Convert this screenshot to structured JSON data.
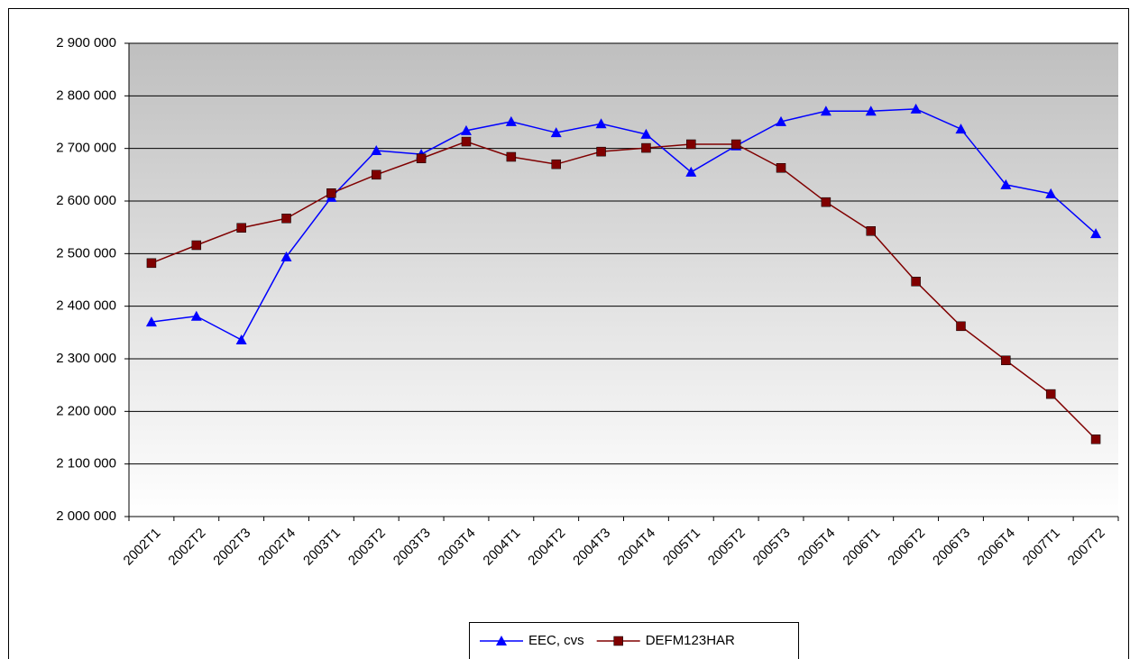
{
  "chart_data": {
    "type": "line",
    "categories": [
      "2002T1",
      "2002T2",
      "2002T3",
      "2002T4",
      "2003T1",
      "2003T2",
      "2003T3",
      "2003T4",
      "2004T1",
      "2004T2",
      "2004T3",
      "2004T4",
      "2005T1",
      "2005T2",
      "2005T3",
      "2005T4",
      "2006T1",
      "2006T2",
      "2006T3",
      "2006T4",
      "2007T1",
      "2007T2"
    ],
    "series": [
      {
        "name": "EEC, cvs",
        "color": "#0000ff",
        "marker": "triangle",
        "values": [
          2370000,
          2381000,
          2336000,
          2494000,
          2607000,
          2696000,
          2689000,
          2734000,
          2751000,
          2730000,
          2747000,
          2727000,
          2655000,
          2705000,
          2751000,
          2771000,
          2771000,
          2775000,
          2737000,
          2631000,
          2614000,
          2538000
        ]
      },
      {
        "name": "DEFM123HAR",
        "color": "#800000",
        "marker": "square",
        "values": [
          2482000,
          2516000,
          2549000,
          2567000,
          2615000,
          2650000,
          2681000,
          2713000,
          2684000,
          2670000,
          2694000,
          2701000,
          2708000,
          2708000,
          2663000,
          2598000,
          2543000,
          2447000,
          2362000,
          2297000,
          2233000,
          2147000
        ]
      }
    ],
    "ylim": [
      2000000,
      2900000
    ],
    "yticks": [
      {
        "value": 2000000,
        "label": "2 000 000"
      },
      {
        "value": 2100000,
        "label": "2 100 000"
      },
      {
        "value": 2200000,
        "label": "2 200 000"
      },
      {
        "value": 2300000,
        "label": "2 300 000"
      },
      {
        "value": 2400000,
        "label": "2 400 000"
      },
      {
        "value": 2500000,
        "label": "2 500 000"
      },
      {
        "value": 2600000,
        "label": "2 600 000"
      },
      {
        "value": 2700000,
        "label": "2 700 000"
      },
      {
        "value": 2800000,
        "label": "2 800 000"
      },
      {
        "value": 2900000,
        "label": "2 900 000"
      }
    ],
    "grid": true,
    "legend": "bottom"
  }
}
